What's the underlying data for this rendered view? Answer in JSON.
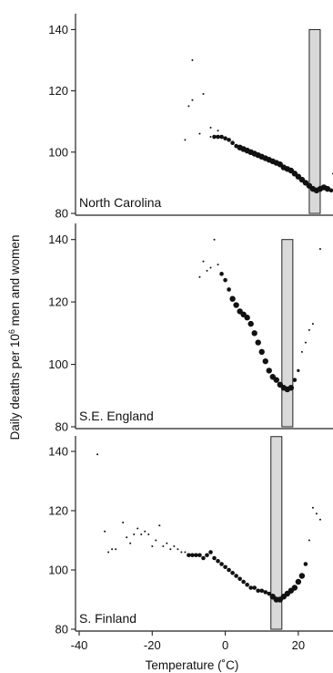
{
  "chart_data": {
    "type": "scatter",
    "xlabel": "Temperature (˚C)",
    "ylabel_parts": {
      "main": "Daily deaths per 10",
      "sup": "6",
      "end": " men and women"
    },
    "xlim": [
      -41,
      29.5
    ],
    "xticks": [
      -40,
      -20,
      0,
      20
    ],
    "yticks": [
      80,
      100,
      120,
      140
    ],
    "ylim": [
      80,
      144
    ],
    "panels": [
      {
        "name": "North Carolina",
        "band": {
          "x": [
            23,
            26
          ],
          "y": [
            80,
            140
          ]
        },
        "points": [
          [
            -9,
            130,
            1
          ],
          [
            -10,
            115,
            1
          ],
          [
            -9,
            117,
            1
          ],
          [
            -6,
            119,
            1
          ],
          [
            -11,
            104,
            1
          ],
          [
            -7,
            106,
            1
          ],
          [
            -4,
            108,
            1
          ],
          [
            -2,
            107,
            1
          ],
          [
            -4,
            105,
            1
          ],
          [
            -3,
            105,
            2
          ],
          [
            -2,
            105,
            2
          ],
          [
            -1,
            105,
            2
          ],
          [
            0,
            104.5,
            2
          ],
          [
            1,
            104,
            2
          ],
          [
            2,
            103,
            2
          ],
          [
            3,
            102,
            2
          ],
          [
            4,
            101.5,
            3
          ],
          [
            5,
            101,
            3
          ],
          [
            6,
            100.5,
            3
          ],
          [
            7,
            100,
            3
          ],
          [
            8,
            99.5,
            3
          ],
          [
            9,
            99,
            3
          ],
          [
            10,
            98.5,
            3
          ],
          [
            11,
            98,
            3
          ],
          [
            12,
            97.5,
            3
          ],
          [
            13,
            97,
            3
          ],
          [
            14,
            96.5,
            3
          ],
          [
            15,
            96,
            3
          ],
          [
            16,
            95,
            3
          ],
          [
            17,
            94.5,
            3
          ],
          [
            18,
            94,
            3
          ],
          [
            19,
            93,
            3
          ],
          [
            20,
            92,
            3
          ],
          [
            21,
            91,
            3
          ],
          [
            22,
            90,
            3
          ],
          [
            23,
            89,
            3
          ],
          [
            24,
            88,
            3
          ],
          [
            25,
            87.5,
            3
          ],
          [
            26,
            88,
            3
          ],
          [
            27,
            88.5,
            3
          ],
          [
            28,
            88,
            3
          ],
          [
            29,
            87.5,
            2
          ],
          [
            29.5,
            93,
            1
          ]
        ]
      },
      {
        "name": "S.E. England",
        "band": {
          "x": [
            15.5,
            18.5
          ],
          "y": [
            80,
            140
          ]
        },
        "points": [
          [
            -3,
            140,
            1
          ],
          [
            -6,
            133,
            1
          ],
          [
            -7,
            128,
            1
          ],
          [
            -5,
            130,
            1
          ],
          [
            -4,
            131,
            1
          ],
          [
            -2,
            132,
            1
          ],
          [
            -1,
            129,
            2
          ],
          [
            0,
            127,
            2
          ],
          [
            1,
            124,
            2
          ],
          [
            2,
            121,
            3
          ],
          [
            3,
            119,
            3
          ],
          [
            4,
            117,
            3
          ],
          [
            5,
            116,
            3
          ],
          [
            6,
            115,
            3
          ],
          [
            7,
            113,
            3
          ],
          [
            8,
            110,
            3
          ],
          [
            9,
            107,
            3
          ],
          [
            10,
            104,
            3
          ],
          [
            11,
            101,
            3
          ],
          [
            12,
            98,
            3
          ],
          [
            13,
            96,
            3
          ],
          [
            14,
            95,
            3
          ],
          [
            15,
            93.5,
            3
          ],
          [
            16,
            92.5,
            3
          ],
          [
            17,
            92,
            3
          ],
          [
            18,
            92.5,
            3
          ],
          [
            19,
            95,
            2
          ],
          [
            20,
            98,
            1.5
          ],
          [
            21,
            104,
            1
          ],
          [
            22,
            107,
            1
          ],
          [
            23,
            111,
            1
          ],
          [
            24,
            113,
            1
          ],
          [
            26,
            137,
            1
          ]
        ]
      },
      {
        "name": "S. Finland",
        "band": {
          "x": [
            12.5,
            15.5
          ],
          "y": [
            80,
            145
          ]
        },
        "points": [
          [
            -35,
            139,
            1
          ],
          [
            -33,
            113,
            1
          ],
          [
            -32,
            106,
            1
          ],
          [
            -31,
            107,
            1
          ],
          [
            -30,
            107,
            1
          ],
          [
            -28,
            116,
            1
          ],
          [
            -27,
            111,
            1
          ],
          [
            -26,
            109,
            1
          ],
          [
            -25,
            112,
            1
          ],
          [
            -24,
            114,
            1
          ],
          [
            -23,
            112,
            1
          ],
          [
            -22,
            113,
            1
          ],
          [
            -21,
            112,
            1
          ],
          [
            -20,
            108,
            1
          ],
          [
            -19,
            110,
            1
          ],
          [
            -18,
            115,
            1
          ],
          [
            -17,
            108,
            1
          ],
          [
            -16,
            109,
            1
          ],
          [
            -15,
            107,
            1
          ],
          [
            -14,
            108,
            1
          ],
          [
            -13,
            107,
            1
          ],
          [
            -12,
            106,
            1
          ],
          [
            -11,
            106,
            1
          ],
          [
            -10,
            105,
            2
          ],
          [
            -9,
            105,
            2
          ],
          [
            -8,
            105,
            2
          ],
          [
            -7,
            105,
            2
          ],
          [
            -6,
            104,
            2
          ],
          [
            -5,
            105,
            2
          ],
          [
            -4,
            106,
            2
          ],
          [
            -3,
            104,
            2
          ],
          [
            -2,
            103,
            2
          ],
          [
            -1,
            102,
            2
          ],
          [
            0,
            101,
            2
          ],
          [
            1,
            100,
            2
          ],
          [
            2,
            99,
            2
          ],
          [
            3,
            98,
            2
          ],
          [
            4,
            97,
            2
          ],
          [
            5,
            96,
            2
          ],
          [
            6,
            95,
            2
          ],
          [
            7,
            94,
            2
          ],
          [
            8,
            94,
            2
          ],
          [
            9,
            93,
            2
          ],
          [
            10,
            93,
            2
          ],
          [
            11,
            92.5,
            2
          ],
          [
            12,
            92,
            2
          ],
          [
            13,
            91,
            3
          ],
          [
            14,
            90,
            3
          ],
          [
            15,
            90,
            3
          ],
          [
            16,
            91,
            3
          ],
          [
            17,
            92,
            3
          ],
          [
            18,
            93,
            3
          ],
          [
            19,
            94,
            3
          ],
          [
            20,
            96,
            3
          ],
          [
            21,
            98,
            3
          ],
          [
            22,
            102,
            2
          ],
          [
            23,
            110,
            1
          ],
          [
            24,
            121,
            1
          ],
          [
            25,
            119,
            1
          ],
          [
            26,
            117,
            1
          ]
        ]
      }
    ]
  }
}
